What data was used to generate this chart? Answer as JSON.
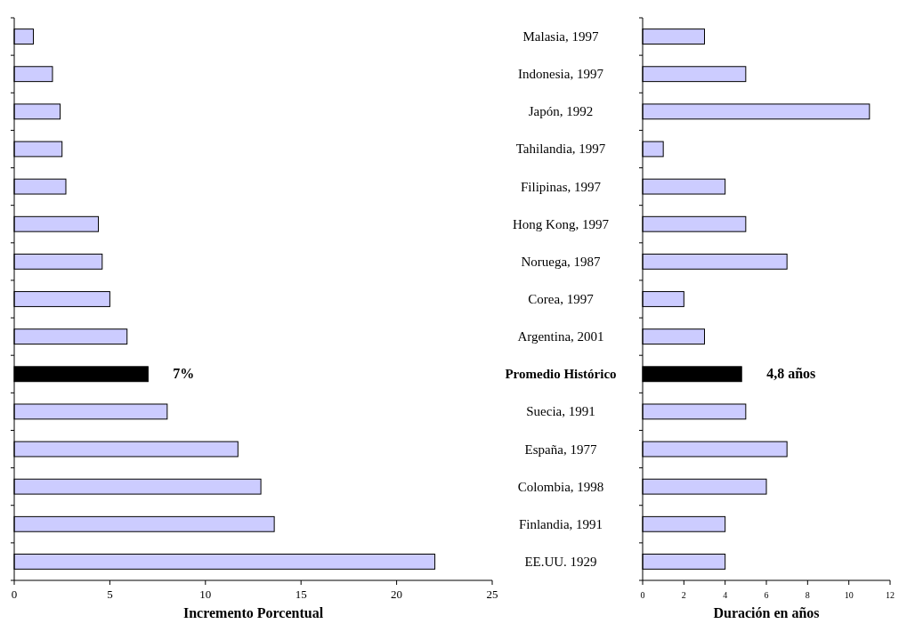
{
  "chart_data": [
    {
      "type": "bar",
      "orientation": "horizontal",
      "xlabel": "Incremento Porcentual",
      "categories": [
        null,
        null,
        null,
        null,
        null,
        null,
        null,
        null,
        null,
        null,
        null,
        null,
        null,
        null,
        null
      ],
      "values": [
        1.0,
        2.0,
        2.4,
        2.5,
        2.7,
        4.4,
        4.6,
        5.0,
        5.9,
        7.0,
        8.0,
        11.7,
        12.9,
        13.6,
        22.0
      ],
      "colors": [
        "#ccccff",
        "#ccccff",
        "#ccccff",
        "#ccccff",
        "#ccccff",
        "#ccccff",
        "#ccccff",
        "#ccccff",
        "#ccccff",
        "#000000",
        "#ccccff",
        "#ccccff",
        "#ccccff",
        "#ccccff",
        "#ccccff"
      ],
      "value_labels": [
        null,
        null,
        null,
        null,
        null,
        null,
        null,
        null,
        null,
        "7%",
        null,
        null,
        null,
        null,
        null
      ],
      "xlim": [
        0,
        25
      ],
      "xticks": [
        0,
        5,
        10,
        15,
        20,
        25
      ],
      "tick_labels": "x"
    },
    {
      "type": "bar",
      "orientation": "horizontal",
      "xlabel": "Duración en años",
      "categories": [
        "Malasia, 1997",
        "Indonesia, 1997",
        "Japón, 1992",
        "Tahilandia, 1997",
        "Filipinas, 1997",
        "Hong Kong, 1997",
        "Noruega, 1987",
        "Corea, 1997",
        "Argentina, 2001",
        "Promedio Histórico",
        "Suecia, 1991",
        "España, 1977",
        "Colombia, 1998",
        "Finlandia, 1991",
        "EE.UU. 1929"
      ],
      "values": [
        3,
        5,
        11,
        1,
        4,
        5,
        7,
        2,
        3,
        4.8,
        5,
        7,
        6,
        4,
        4
      ],
      "colors": [
        "#ccccff",
        "#ccccff",
        "#ccccff",
        "#ccccff",
        "#ccccff",
        "#ccccff",
        "#ccccff",
        "#ccccff",
        "#ccccff",
        "#000000",
        "#ccccff",
        "#ccccff",
        "#ccccff",
        "#ccccff",
        "#ccccff"
      ],
      "value_labels": [
        null,
        null,
        null,
        null,
        null,
        null,
        null,
        null,
        null,
        "4,8 años",
        null,
        null,
        null,
        null,
        null
      ],
      "xlim": [
        0,
        12
      ],
      "xticks": [
        0,
        2,
        4,
        6,
        8,
        10,
        12
      ]
    }
  ]
}
